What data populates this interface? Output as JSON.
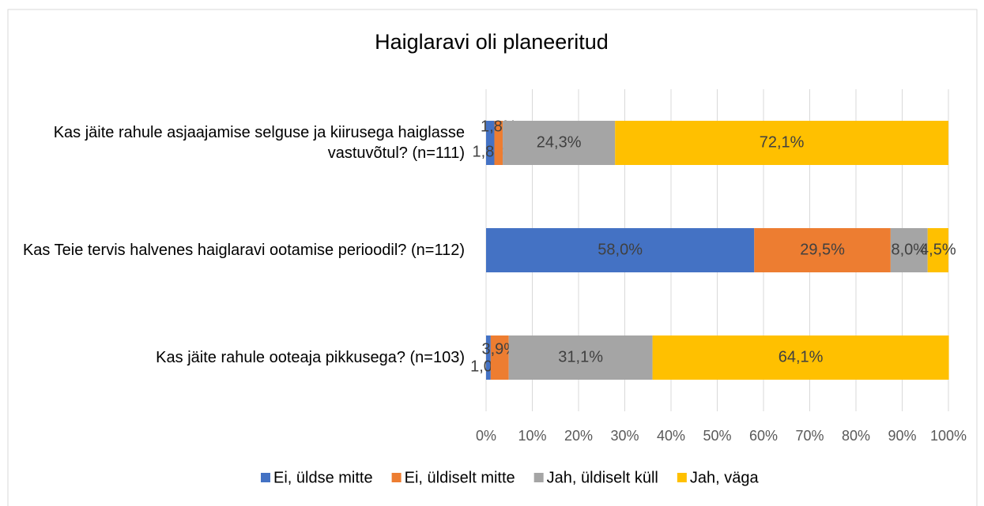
{
  "chart_data": {
    "type": "bar",
    "orientation": "horizontal",
    "stacked": true,
    "title": "Haiglaravi oli planeeritud",
    "categories": [
      "Kas jäite rahule asjaajamise selguse ja kiirusega haiglasse vastuvõtul? (n=111)",
      "Kas Teie tervis halvenes haiglaravi ootamise perioodil? (n=112)",
      "Kas jäite rahule ooteaja pikkusega? (n=103)"
    ],
    "series": [
      {
        "name": "Ei, üldse mitte",
        "color": "#4472c4",
        "values": [
          1.8,
          58.0,
          1.0
        ],
        "value_labels": [
          "1,8%",
          "58,0%",
          "1,0%"
        ]
      },
      {
        "name": "Ei, üldiselt mitte",
        "color": "#ed7d31",
        "values": [
          1.8,
          29.5,
          3.9
        ],
        "value_labels": [
          "1,8%",
          "29,5%",
          "3,9%"
        ]
      },
      {
        "name": "Jah, üldiselt küll",
        "color": "#a5a5a5",
        "values": [
          24.3,
          8.0,
          31.1
        ],
        "value_labels": [
          "24,3%",
          "8,0%",
          "31,1%"
        ]
      },
      {
        "name": "Jah, väga",
        "color": "#ffc000",
        "values": [
          72.1,
          4.5,
          64.1
        ],
        "value_labels": [
          "72,1%",
          "4,5%",
          "64,1%"
        ]
      }
    ],
    "xlim": [
      0,
      100
    ],
    "xticks": [
      {
        "value": 0,
        "label": "0%"
      },
      {
        "value": 10,
        "label": "10%"
      },
      {
        "value": 20,
        "label": "20%"
      },
      {
        "value": 30,
        "label": "30%"
      },
      {
        "value": 40,
        "label": "40%"
      },
      {
        "value": 50,
        "label": "50%"
      },
      {
        "value": 60,
        "label": "60%"
      },
      {
        "value": 70,
        "label": "70%"
      },
      {
        "value": 80,
        "label": "80%"
      },
      {
        "value": 90,
        "label": "90%"
      },
      {
        "value": 100,
        "label": "100%"
      }
    ],
    "grid": true,
    "legend": "bottom"
  }
}
